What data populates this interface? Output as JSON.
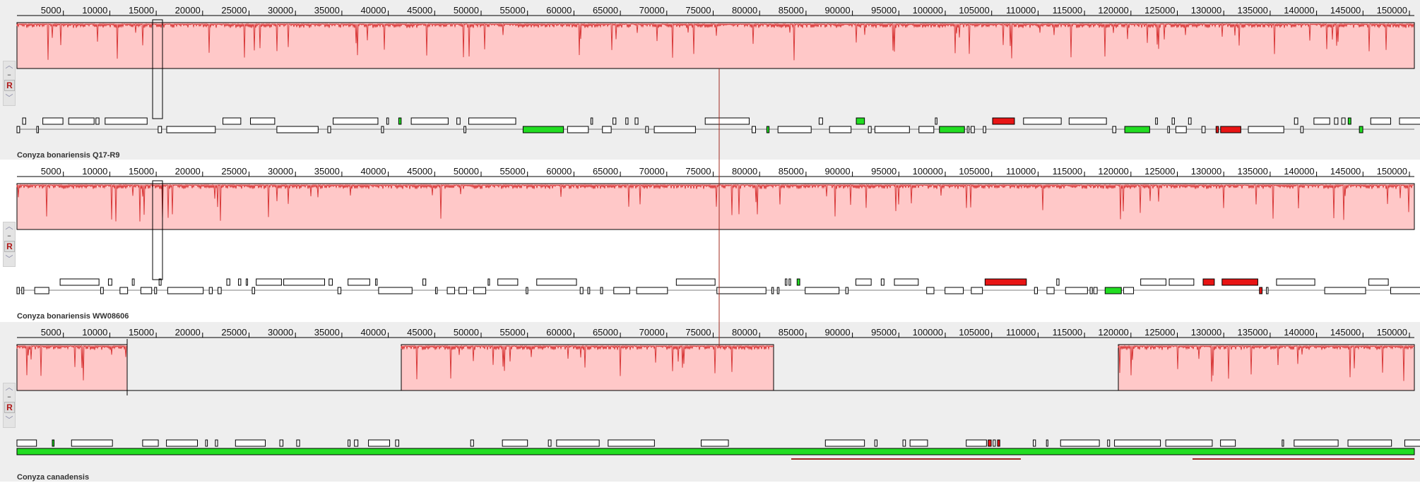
{
  "app": {
    "ruler_ticks": [
      "5000",
      "10000",
      "15000",
      "20000",
      "25000",
      "30000",
      "35000",
      "40000",
      "45000",
      "50000",
      "55000",
      "60000",
      "65000",
      "70000",
      "75000",
      "80000",
      "85000",
      "90000",
      "95000",
      "100000",
      "105000",
      "110000",
      "115000",
      "120000",
      "125000",
      "130000",
      "135000",
      "140000",
      "145000",
      "150000"
    ],
    "reverse_label": "R",
    "colors": {
      "similarity_fill": "#ffc8c8",
      "similarity_line": "#d93a3a",
      "gene_green": "#22dd22",
      "gene_red": "#e81515",
      "gene_box": "#ffffff",
      "lcb_link": "#a0281e"
    },
    "icons": {
      "up": "chevron-up-icon",
      "minus": "minus-icon",
      "reverse": "reverse-complement-icon",
      "down": "chevron-down-icon"
    }
  },
  "sequences": [
    {
      "name": "Conyza bonariensis Q17-R9"
    },
    {
      "name": "Conyza bonariensis WW08606"
    },
    {
      "name": "Conyza canadensis"
    }
  ]
}
